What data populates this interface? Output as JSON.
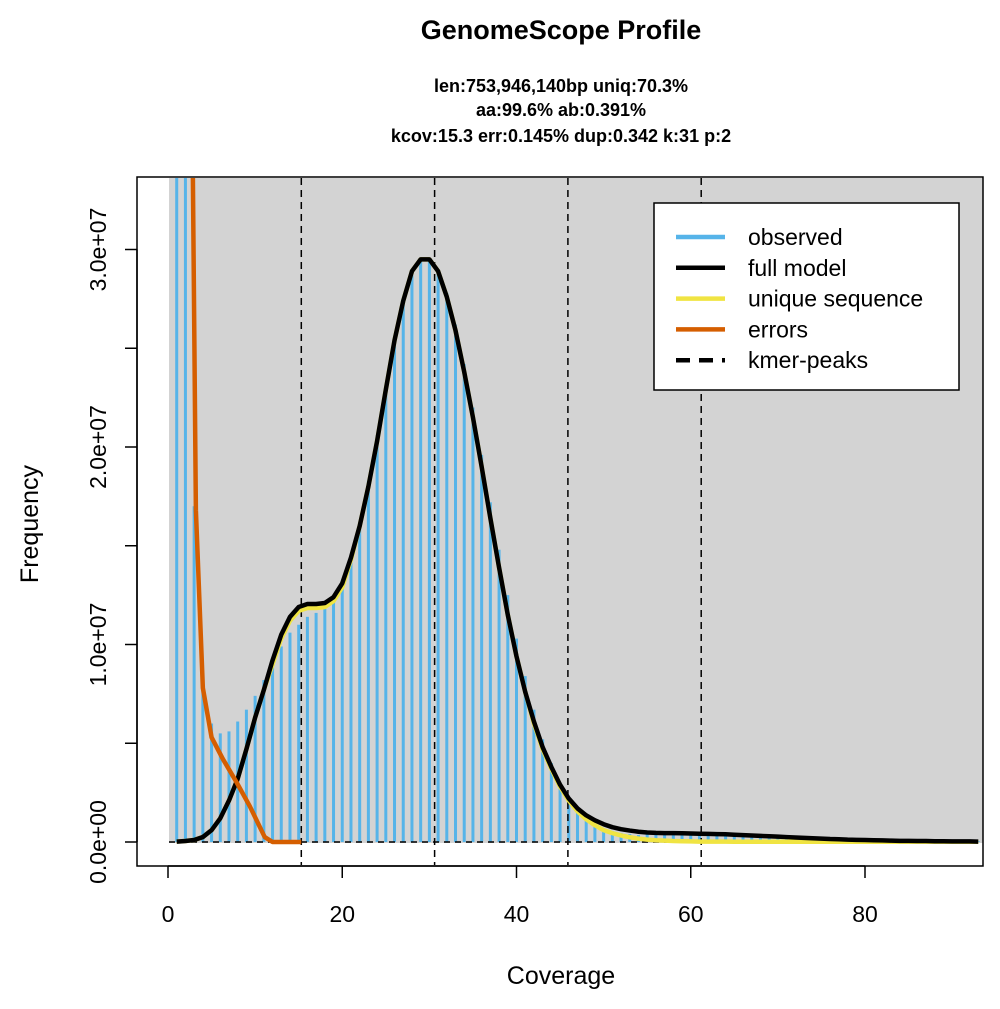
{
  "chart_data": {
    "type": "bar",
    "title": "GenomeScope Profile",
    "subtitle_lines": [
      "len:753,946,140bp uniq:70.3%",
      "aa:99.6% ab:0.391%",
      "kcov:15.3 err:0.145%  dup:0.342  k:31 p:2"
    ],
    "xlabel": "Coverage",
    "ylabel": "Frequency",
    "xlim": [
      -3.6,
      93.5
    ],
    "ylim": [
      0,
      33700000.0
    ],
    "xticks": [
      0,
      20,
      40,
      60,
      80
    ],
    "xtick_labels": [
      "0",
      "20",
      "40",
      "60",
      "80"
    ],
    "yticks": [
      0,
      5000000.0,
      10000000.0,
      15000000.0,
      20000000.0,
      25000000.0,
      30000000.0
    ],
    "ytick_labels": {
      "0": "0.0e+00",
      "10000000": "1.0e+07",
      "20000000": "2.0e+07",
      "30000000": "3.0e+07"
    },
    "ytick_label_list": [
      "0.0e+00",
      "1.0e+07",
      "2.0e+07",
      "3.0e+07"
    ],
    "ytick_label_values": [
      0,
      10000000.0,
      20000000.0,
      30000000.0
    ],
    "grid": false,
    "background": "#D3D3D3",
    "legend": {
      "placement": "top-right",
      "entries": [
        {
          "label": "observed",
          "color": "#56B4E9",
          "style": "solid"
        },
        {
          "label": "full model",
          "color": "#000000",
          "style": "solid"
        },
        {
          "label": "unique sequence",
          "color": "#F0E442",
          "style": "solid"
        },
        {
          "label": "errors",
          "color": "#D55E00",
          "style": "solid"
        },
        {
          "label": "kmer-peaks",
          "color": "#000000",
          "style": "dashed"
        }
      ]
    },
    "kmer_peaks": [
      15.3,
      30.6,
      45.9,
      61.2
    ],
    "observed": {
      "name": "observed",
      "color": "#56B4E9",
      "x_start": 1,
      "values": [
        40000000.0,
        40000000.0,
        17000000.0,
        8500000.0,
        6000000.0,
        5500000.0,
        5600000.0,
        6100000.0,
        6700000.0,
        7400000.0,
        8200000.0,
        9000000.0,
        9900000.0,
        10600000.0,
        11000000.0,
        11400000.0,
        11600000.0,
        11800000.0,
        12300000.0,
        13200000.0,
        14400000.0,
        16200000.0,
        18300000.0,
        20600000.0,
        23000000.0,
        25300000.0,
        27200000.0,
        28700000.0,
        29500000.0,
        29500000.0,
        29000000.0,
        27800000.0,
        26200000.0,
        24200000.0,
        22000000.0,
        19600000.0,
        17200000.0,
        14800000.0,
        12500000.0,
        10300000.0,
        8400000.0,
        6700000.0,
        5200000.0,
        4000000.0,
        3000000.0,
        2200000.0,
        1600000.0,
        1200000.0,
        900000.0,
        700000.0,
        550000.0,
        450000.0,
        400000.0,
        350000.0,
        450000.0,
        430000.0,
        420000.0,
        410000.0,
        400000.0,
        390000.0,
        380000.0,
        370000.0,
        360000.0,
        340000.0,
        320000.0,
        300000.0,
        280000.0,
        270000.0,
        250000.0,
        230000.0,
        210000.0,
        200000.0,
        180000.0,
        170000.0,
        150000.0,
        140000.0,
        130000.0,
        120000.0,
        110000.0,
        100000.0,
        90000.0,
        80000.0,
        80000.0,
        70000.0,
        70000.0,
        60000.0,
        60000.0,
        50000.0,
        50000.0,
        50000.0,
        40000.0,
        40000.0,
        40000.0
      ]
    },
    "full_model": {
      "name": "full model",
      "color": "#000000",
      "x_start": 1,
      "values": [
        20000.0,
        50000.0,
        100000.0,
        250000.0,
        600000.0,
        1200000.0,
        2100000.0,
        3200000.0,
        4700000.0,
        6300000.0,
        7700000.0,
        9200000.0,
        10500000.0,
        11400000.0,
        11900000.0,
        12050000.0,
        12050000.0,
        12100000.0,
        12400000.0,
        13100000.0,
        14400000.0,
        16000000.0,
        18000000.0,
        20300000.0,
        22900000.0,
        25400000.0,
        27400000.0,
        28900000.0,
        29500000.0,
        29500000.0,
        28900000.0,
        27600000.0,
        25900000.0,
        23800000.0,
        21500000.0,
        19000000.0,
        16400000.0,
        13900000.0,
        11500000.0,
        9400000.0,
        7600000.0,
        6100000.0,
        4800000.0,
        3800000.0,
        2900000.0,
        2200000.0,
        1700000.0,
        1350000.0,
        1100000.0,
        900000.0,
        750000.0,
        650000.0,
        580000.0,
        520000.0,
        480000.0,
        460000.0,
        450000.0,
        450000.0,
        440000.0,
        430000.0,
        420000.0,
        410000.0,
        400000.0,
        390000.0,
        370000.0,
        350000.0,
        330000.0,
        310000.0,
        290000.0,
        270000.0,
        250000.0,
        230000.0,
        210000.0,
        190000.0,
        170000.0,
        150000.0,
        140000.0,
        120000.0,
        110000.0,
        100000.0,
        90000.0,
        80000.0,
        70000.0,
        60000.0,
        60000.0,
        50000.0,
        50000.0,
        40000.0,
        40000.0,
        30000.0,
        30000.0,
        30000.0,
        20000.0
      ]
    },
    "unique_sequence": {
      "name": "unique sequence",
      "color": "#F0E442",
      "x_start": 1,
      "values": [
        20000.0,
        50000.0,
        100000.0,
        250000.0,
        600000.0,
        1200000.0,
        2100000.0,
        3200000.0,
        4700000.0,
        6300000.0,
        7700000.0,
        9000000.0,
        10300000.0,
        11200000.0,
        11700000.0,
        11850000.0,
        11850000.0,
        11900000.0,
        12200000.0,
        12900000.0,
        14300000.0,
        16000000.0,
        18000000.0,
        20300000.0,
        22900000.0,
        25400000.0,
        27400000.0,
        28900000.0,
        29500000.0,
        29500000.0,
        28900000.0,
        27600000.0,
        25900000.0,
        23800000.0,
        21500000.0,
        19000000.0,
        16400000.0,
        13900000.0,
        11500000.0,
        9400000.0,
        7600000.0,
        6000000.0,
        4700000.0,
        3700000.0,
        2800000.0,
        2100000.0,
        1550000.0,
        1150000.0,
        850000.0,
        600000.0,
        450000.0,
        330000.0,
        240000.0,
        170000.0,
        120000.0,
        90000.0,
        70000.0,
        50000.0,
        40000.0,
        30000.0,
        20000.0,
        20000.0,
        20000.0,
        20000.0,
        10000.0,
        10000.0,
        10000.0,
        10000.0,
        10000.0,
        10000.0,
        10000.0,
        10000.0,
        10000.0,
        10000.0,
        10000.0,
        10000.0,
        10000.0,
        10000.0,
        10000.0,
        10000.0,
        10000.0,
        10000.0,
        10000.0,
        10000.0,
        10000.0,
        10000.0,
        10000.0,
        10000.0,
        10000.0,
        10000.0,
        10000.0,
        10000.0,
        10000.0
      ]
    },
    "errors": {
      "name": "errors",
      "color": "#D55E00",
      "x": [
        2.85,
        3.2,
        4,
        5,
        6.3,
        7.9,
        9.4,
        11.1,
        12,
        15.3
      ],
      "values": [
        34000000.0,
        16800000.0,
        7800000.0,
        5300000.0,
        4200000.0,
        3000000.0,
        1800000.0,
        250000.0,
        0,
        0
      ]
    }
  }
}
